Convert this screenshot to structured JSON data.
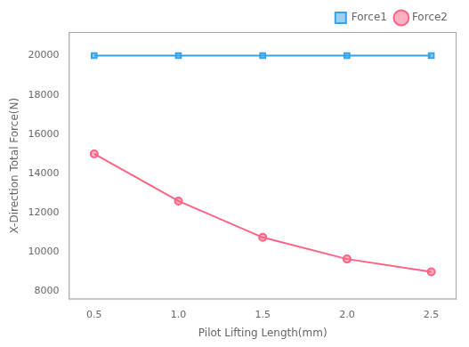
{
  "chart_data": {
    "type": "line",
    "x": [
      0.5,
      1.0,
      1.5,
      2.0,
      2.5
    ],
    "series": [
      {
        "name": "Force1",
        "values": [
          20000,
          20000,
          20000,
          20000,
          20000
        ],
        "marker": "square"
      },
      {
        "name": "Force2",
        "values": [
          15000,
          12600,
          10750,
          9650,
          9000
        ],
        "marker": "circle"
      }
    ],
    "xlabel": "Pilot Lifting Length(mm)",
    "ylabel": "X-Direction Total Force(N)",
    "xlim": [
      0.35,
      2.65
    ],
    "ylim": [
      7600,
      21200
    ],
    "xticks": [
      0.5,
      {
        "value": 1.0,
        "label": "1.0"
      },
      1.5,
      {
        "value": 2.0,
        "label": "2.0"
      },
      2.5
    ],
    "yticks": [
      8000,
      10000,
      12000,
      14000,
      16000,
      18000,
      20000
    ],
    "grid": false,
    "legend": "upper right"
  }
}
